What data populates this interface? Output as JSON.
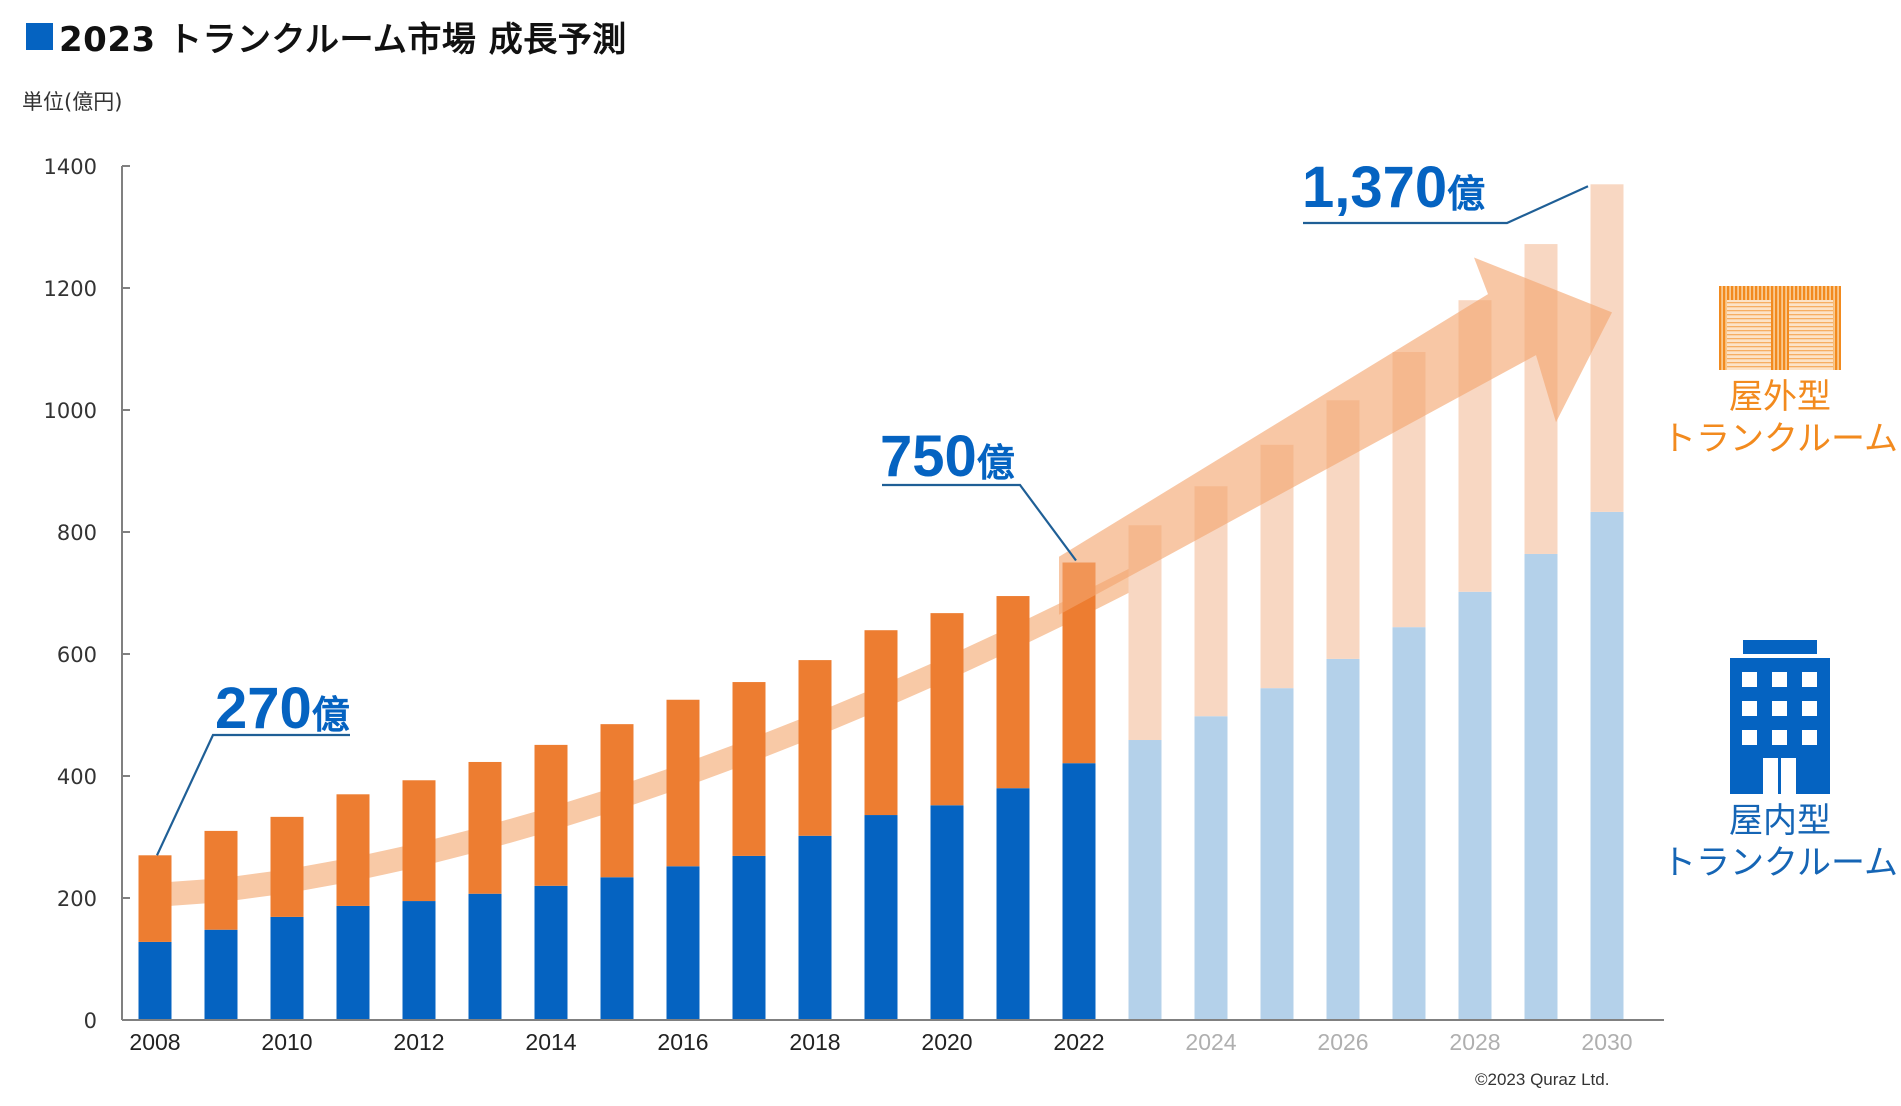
{
  "header": {
    "title": "2023 トランクルーム市場 成長予測",
    "unit": "単位(億円)"
  },
  "footer": {
    "copyright": "©2023 Quraz Ltd."
  },
  "legend": {
    "outdoor": {
      "icon": "storage-container-icon",
      "line1": "屋外型",
      "line2": "トランクルーム",
      "color": "#F28A1E"
    },
    "indoor": {
      "icon": "building-icon",
      "line1": "屋内型",
      "line2": "トランクルーム",
      "color": "#1565B5"
    }
  },
  "chart_data": {
    "type": "bar",
    "stacked": true,
    "title": "2023 トランクルーム市場 成長予測",
    "xlabel": "",
    "ylabel": "単位(億円)",
    "ylim": [
      0,
      1400
    ],
    "yticks": [
      0,
      200,
      400,
      600,
      800,
      1000,
      1200,
      1400
    ],
    "categories": [
      "2008",
      "2009",
      "2010",
      "2011",
      "2012",
      "2013",
      "2014",
      "2015",
      "2016",
      "2017",
      "2018",
      "2019",
      "2020",
      "2021",
      "2022",
      "2023",
      "2024",
      "2025",
      "2026",
      "2027",
      "2028",
      "2029",
      "2030"
    ],
    "xtick_labels": [
      "2008",
      "2010",
      "2012",
      "2014",
      "2016",
      "2018",
      "2020",
      "2022",
      "2024",
      "2026",
      "2028",
      "2030"
    ],
    "forecast_from": "2023",
    "series": [
      {
        "name": "屋内型トランクルーム",
        "color": "#0563C1",
        "forecast_color": "#B4D1EA",
        "values": [
          128,
          148,
          169,
          187,
          195,
          207,
          220,
          234,
          252,
          269,
          302,
          336,
          352,
          380,
          421,
          459,
          498,
          544,
          592,
          644,
          702,
          764,
          833
        ]
      },
      {
        "name": "屋外型トランクルーム",
        "color": "#ED7D31",
        "forecast_color": "#F8D7C2",
        "values": [
          142,
          162,
          164,
          183,
          198,
          216,
          231,
          251,
          273,
          285,
          288,
          303,
          315,
          315,
          329,
          352,
          377,
          399,
          424,
          451,
          478,
          508,
          537
        ]
      }
    ],
    "totals": [
      270,
      310,
      333,
      370,
      393,
      423,
      451,
      485,
      525,
      554,
      590,
      639,
      667,
      695,
      750,
      811,
      875,
      943,
      1016,
      1095,
      1180,
      1272,
      1370
    ],
    "annotations": [
      {
        "category": "2008",
        "text": "270億"
      },
      {
        "category": "2022",
        "text": "750億"
      },
      {
        "category": "2030",
        "text": "1,370億"
      }
    ],
    "trend_arrow": {
      "color": "#F4A46E",
      "description": "growth trend arrow"
    },
    "grid": false,
    "legend_position": "right"
  }
}
